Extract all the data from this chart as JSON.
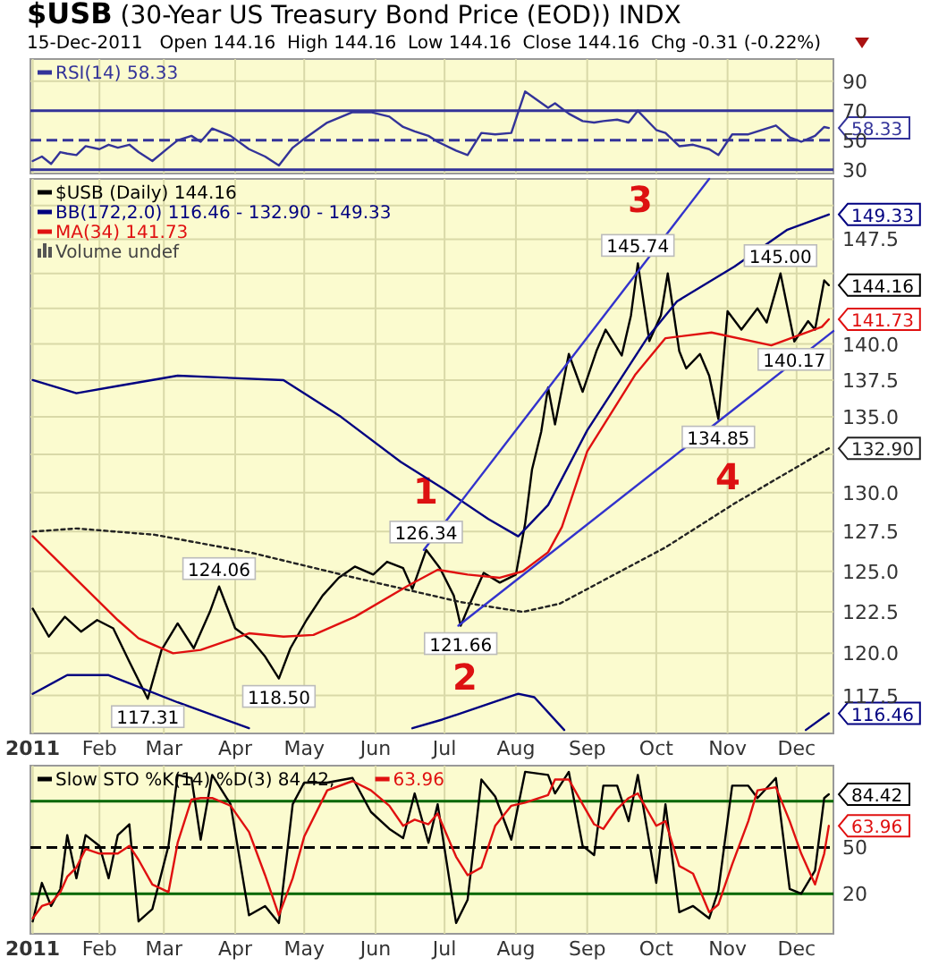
{
  "chart_data": [
    {
      "type": "line",
      "title": "$USB (30-Year US Treasury Bond Price (EOD)) INDX",
      "subtitle": "15-Dec-2011   Open 144.16  High 144.16  Low 144.16  Close 144.16  Chg -0.31 (-0.22%)",
      "x": [
        "2011-01-03",
        "2011-01-07",
        "2011-01-11",
        "2011-01-15",
        "2011-01-18",
        "2011-01-22",
        "2011-01-26",
        "2011-02-01",
        "2011-02-05",
        "2011-02-09",
        "2011-02-14",
        "2011-02-18",
        "2011-02-24",
        "2011-03-03",
        "2011-03-07",
        "2011-03-13",
        "2011-03-17",
        "2011-03-22",
        "2011-03-30",
        "2011-04-07",
        "2011-04-14",
        "2011-04-20",
        "2011-04-26",
        "2011-05-01",
        "2011-05-11",
        "2011-05-22",
        "2011-05-30",
        "2011-06-07",
        "2011-06-13",
        "2011-06-18",
        "2011-06-24",
        "2011-06-28",
        "2011-07-06",
        "2011-07-11",
        "2011-07-17",
        "2011-07-23",
        "2011-07-30",
        "2011-08-05",
        "2011-08-15",
        "2011-08-18",
        "2011-08-24",
        "2011-08-30",
        "2011-09-04",
        "2011-09-08",
        "2011-09-14",
        "2011-09-19",
        "2011-09-23",
        "2011-10-01",
        "2011-10-05",
        "2011-10-11",
        "2011-10-17",
        "2011-10-24",
        "2011-10-28",
        "2011-11-03",
        "2011-11-10",
        "2011-11-14",
        "2011-11-22",
        "2011-11-28",
        "2011-12-03",
        "2011-12-09",
        "2011-12-13",
        "2011-12-15"
      ],
      "series": [
        {
          "name": "RSI(14) 58.33",
          "color": "#333399",
          "values": [
            36,
            39,
            34,
            42,
            41,
            40,
            46,
            44,
            47,
            45,
            47,
            42,
            36,
            45,
            50,
            53,
            49,
            58,
            53,
            44,
            39,
            33,
            45,
            51,
            62,
            69,
            69,
            66,
            59,
            56,
            53,
            49,
            43,
            40,
            55,
            54,
            55,
            83,
            72,
            75,
            68,
            63,
            62,
            63,
            64,
            62,
            70,
            57,
            55,
            46,
            47,
            44,
            40,
            54,
            54,
            56,
            60,
            52,
            49,
            53,
            59,
            58.33
          ],
          "value_labels": [
            null,
            null,
            null,
            null,
            null,
            null,
            null,
            null,
            null,
            null,
            null,
            null,
            null,
            null,
            null,
            null,
            null,
            null,
            null,
            null,
            null,
            null,
            null,
            null,
            null,
            null,
            null,
            null,
            null,
            null,
            null,
            null,
            null,
            null,
            null,
            null,
            null,
            null,
            null,
            null,
            null,
            null,
            null,
            null,
            null,
            null,
            null,
            null,
            null,
            null,
            null,
            null,
            null,
            null,
            null,
            null,
            null,
            null,
            null,
            null,
            null,
            "58.33"
          ]
        }
      ],
      "xlim": [
        "2011-01-02",
        "2011-12-17"
      ],
      "xticks": [
        {
          "value": "2011-01-03",
          "label": null
        },
        {
          "value": "2011-02-01",
          "label": null
        },
        {
          "value": "2011-03-01",
          "label": null
        },
        {
          "value": "2011-04-01",
          "label": null
        },
        {
          "value": "2011-05-01",
          "label": null
        },
        {
          "value": "2011-06-01",
          "label": null
        },
        {
          "value": "2011-07-01",
          "label": null
        },
        {
          "value": "2011-08-01",
          "label": null
        },
        {
          "value": "2011-09-01",
          "label": null
        },
        {
          "value": "2011-10-01",
          "label": null
        },
        {
          "value": "2011-11-01",
          "label": null
        },
        {
          "value": "2011-12-01",
          "label": null
        }
      ],
      "ylim": [
        27.5,
        105
      ],
      "yticks": [
        30,
        50,
        70,
        90
      ],
      "grid": true,
      "legend": "top left",
      "tick_labels": "y",
      "ref_lines": [
        {
          "axis": "y",
          "value": 70,
          "color": "#333399",
          "line_style": "solid"
        },
        {
          "axis": "y",
          "value": 50,
          "color": "#333399",
          "line_style": "dashed"
        },
        {
          "axis": "y",
          "value": 30,
          "color": "#333399",
          "line_style": "solid"
        }
      ]
    },
    {
      "type": "line",
      "log": true,
      "series": [
        {
          "name": "$USB (Daily) 144.16",
          "color": "#000000",
          "x": [
            "2011-01-03",
            "2011-01-10",
            "2011-01-17",
            "2011-01-24",
            "2011-01-31",
            "2011-02-07",
            "2011-02-14",
            "2011-02-22",
            "2011-02-28",
            "2011-03-07",
            "2011-03-14",
            "2011-03-21",
            "2011-03-25",
            "2011-04-01",
            "2011-04-08",
            "2011-04-14",
            "2011-04-20",
            "2011-04-25",
            "2011-05-02",
            "2011-05-09",
            "2011-05-16",
            "2011-05-23",
            "2011-05-31",
            "2011-06-06",
            "2011-06-13",
            "2011-06-17",
            "2011-06-23",
            "2011-06-29",
            "2011-07-05",
            "2011-07-08",
            "2011-07-12",
            "2011-07-18",
            "2011-07-25",
            "2011-08-01",
            "2011-08-05",
            "2011-08-08",
            "2011-08-12",
            "2011-08-15",
            "2011-08-18",
            "2011-08-24",
            "2011-08-30",
            "2011-09-05",
            "2011-09-09",
            "2011-09-16",
            "2011-09-20",
            "2011-09-23",
            "2011-09-28",
            "2011-10-03",
            "2011-10-06",
            "2011-10-11",
            "2011-10-14",
            "2011-10-20",
            "2011-10-24",
            "2011-10-28",
            "2011-11-01",
            "2011-11-07",
            "2011-11-14",
            "2011-11-18",
            "2011-11-22",
            "2011-11-24",
            "2011-11-30",
            "2011-12-06",
            "2011-12-09",
            "2011-12-13",
            "2011-12-15"
          ],
          "values": [
            122.7,
            121.0,
            122.2,
            121.3,
            122.0,
            121.5,
            119.5,
            117.31,
            120.2,
            121.8,
            120.3,
            122.5,
            124.06,
            121.5,
            120.8,
            119.8,
            118.5,
            120.3,
            122.0,
            123.5,
            124.6,
            125.3,
            124.8,
            125.6,
            125.2,
            123.9,
            126.34,
            125.2,
            123.5,
            121.66,
            123.0,
            124.9,
            124.3,
            124.8,
            128.0,
            131.5,
            134.0,
            137.0,
            134.5,
            139.3,
            136.7,
            139.5,
            141.0,
            139.2,
            142.0,
            145.74,
            140.2,
            142.0,
            145.0,
            139.5,
            138.3,
            139.3,
            137.8,
            134.85,
            142.3,
            141.0,
            142.5,
            141.5,
            143.8,
            145.0,
            140.17,
            141.6,
            141.0,
            144.5,
            144.16
          ],
          "value_labels": [
            null,
            null,
            null,
            null,
            null,
            null,
            null,
            "117.31",
            null,
            null,
            null,
            null,
            "124.06",
            null,
            null,
            null,
            "118.50",
            null,
            null,
            null,
            null,
            null,
            null,
            null,
            null,
            null,
            "126.34",
            null,
            null,
            "121.66",
            null,
            null,
            null,
            null,
            null,
            null,
            null,
            null,
            null,
            null,
            null,
            null,
            null,
            null,
            null,
            "145.74",
            null,
            null,
            null,
            null,
            null,
            null,
            null,
            "134.85",
            null,
            null,
            null,
            null,
            null,
            "145.00",
            "140.17",
            null,
            null,
            null,
            "144.16"
          ]
        },
        {
          "name": "BB(172,2.0) 116.46 - 132.90 - 149.33",
          "color": "#000080",
          "x": [
            "2011-01-03",
            "2011-01-22",
            "2011-02-09",
            "2011-03-07",
            "2011-04-22",
            "2011-05-17",
            "2011-06-12",
            "2011-07-01",
            "2011-07-20",
            "2011-08-02",
            "2011-08-15",
            "2011-09-01",
            "2011-09-27",
            "2011-10-10",
            "2011-11-04",
            "2011-11-27",
            "2011-12-15"
          ],
          "values": [
            137.5,
            136.6,
            137.1,
            137.8,
            137.5,
            135.0,
            132.0,
            130.2,
            128.3,
            127.2,
            129.2,
            134.1,
            140.4,
            143.0,
            145.5,
            148.2,
            149.33
          ],
          "value_labels": [
            null,
            null,
            null,
            null,
            null,
            null,
            null,
            null,
            null,
            null,
            null,
            null,
            null,
            null,
            null,
            null,
            "149.33"
          ]
        },
        {
          "color": "#222222",
          "line_style": "dotted",
          "x": [
            "2011-01-03",
            "2011-01-22",
            "2011-02-25",
            "2011-04-07",
            "2011-05-23",
            "2011-07-08",
            "2011-08-04",
            "2011-08-20",
            "2011-10-05",
            "2011-11-04",
            "2011-12-15"
          ],
          "values": [
            127.5,
            127.7,
            127.3,
            126.2,
            124.6,
            123.1,
            122.5,
            123.0,
            126.5,
            129.3,
            132.9
          ],
          "value_labels": [
            null,
            null,
            null,
            null,
            null,
            null,
            null,
            null,
            null,
            null,
            "132.90"
          ]
        },
        {
          "color": "#000080",
          "x": [
            "2011-01-03",
            "2011-01-18",
            "2011-02-05",
            "2011-03-07",
            "2011-04-07",
            "2011-05-15",
            "2011-06-17",
            "2011-06-30",
            "2011-08-02",
            "2011-08-09",
            "2011-08-22",
            "2011-10-15",
            "2011-12-05",
            "2011-12-15"
          ],
          "values": [
            117.6,
            118.7,
            118.7,
            117.1,
            115.6,
            null,
            115.6,
            116.1,
            117.6,
            117.4,
            115.5,
            null,
            115.5,
            116.46
          ],
          "value_labels": [
            null,
            null,
            null,
            null,
            null,
            null,
            null,
            null,
            null,
            null,
            null,
            null,
            null,
            "116.46"
          ]
        },
        {
          "name": "MA(34) 141.73",
          "color": "#e01010",
          "x": [
            "2011-01-03",
            "2011-02-09",
            "2011-02-18",
            "2011-03-05",
            "2011-03-17",
            "2011-04-07",
            "2011-04-22",
            "2011-05-05",
            "2011-05-23",
            "2011-06-15",
            "2011-06-28",
            "2011-07-11",
            "2011-07-25",
            "2011-08-04",
            "2011-08-15",
            "2011-08-21",
            "2011-09-01",
            "2011-09-22",
            "2011-10-05",
            "2011-10-25",
            "2011-11-20",
            "2011-12-12",
            "2011-12-15"
          ],
          "values": [
            127.2,
            122.0,
            120.9,
            120.0,
            120.2,
            121.2,
            121.0,
            121.1,
            122.2,
            124.1,
            125.1,
            124.8,
            124.6,
            125.0,
            126.2,
            127.8,
            132.7,
            137.9,
            140.4,
            140.8,
            139.9,
            141.2,
            141.73
          ],
          "value_labels": [
            null,
            null,
            null,
            null,
            null,
            null,
            null,
            null,
            null,
            null,
            null,
            null,
            null,
            null,
            null,
            null,
            null,
            null,
            null,
            null,
            null,
            null,
            "141.73"
          ]
        },
        {
          "color": "#3333cc",
          "x": [
            "2011-06-22",
            "2011-10-24"
          ],
          "values": [
            126.34,
            152
          ]
        },
        {
          "color": "#3333cc",
          "x": [
            "2011-07-07",
            "2011-12-17"
          ],
          "values": [
            121.66,
            140.9
          ]
        }
      ],
      "xlim": [
        "2011-01-02",
        "2011-12-17"
      ],
      "xticks": [
        {
          "value": "2011-01-03",
          "label": "2011"
        },
        {
          "value": "2011-02-01",
          "label": "Feb"
        },
        {
          "value": "2011-03-01",
          "label": "Mar"
        },
        {
          "value": "2011-04-01",
          "label": "Apr"
        },
        {
          "value": "2011-05-01",
          "label": "May"
        },
        {
          "value": "2011-06-01",
          "label": "Jun"
        },
        {
          "value": "2011-07-01",
          "label": "Jul"
        },
        {
          "value": "2011-08-01",
          "label": "Aug"
        },
        {
          "value": "2011-09-01",
          "label": "Sep"
        },
        {
          "value": "2011-10-01",
          "label": "Oct"
        },
        {
          "value": "2011-11-01",
          "label": "Nov"
        },
        {
          "value": "2011-12-01",
          "label": "Dec"
        }
      ],
      "ylim": [
        115.3,
        152
      ],
      "yticks": [
        117.5,
        {
          "value": 120,
          "label": "120.0"
        },
        122.5,
        {
          "value": 125,
          "label": "125.0"
        },
        127.5,
        {
          "value": 130,
          "label": "130.0"
        },
        {
          "value": 132.5,
          "label": null
        },
        {
          "value": 135,
          "label": "135.0"
        },
        137.5,
        {
          "value": 140,
          "label": "140.0"
        },
        {
          "value": 142.5,
          "label": null
        },
        {
          "value": 145,
          "label": null
        },
        147.5,
        {
          "value": 150,
          "label": null
        }
      ],
      "grid": true,
      "legend": "top left",
      "annotations": [
        "Volume undef",
        "1",
        "2",
        "3",
        "4"
      ]
    },
    {
      "type": "line",
      "x": [
        "2011-01-03",
        "2011-01-07",
        "2011-01-11",
        "2011-01-15",
        "2011-01-18",
        "2011-01-22",
        "2011-01-26",
        "2011-02-01",
        "2011-02-05",
        "2011-02-09",
        "2011-02-14",
        "2011-02-18",
        "2011-02-24",
        "2011-03-03",
        "2011-03-07",
        "2011-03-13",
        "2011-03-17",
        "2011-03-22",
        "2011-03-30",
        "2011-04-07",
        "2011-04-14",
        "2011-04-20",
        "2011-04-26",
        "2011-05-01",
        "2011-05-11",
        "2011-05-22",
        "2011-05-30",
        "2011-06-07",
        "2011-06-13",
        "2011-06-18",
        "2011-06-24",
        "2011-06-28",
        "2011-07-06",
        "2011-07-11",
        "2011-07-17",
        "2011-07-23",
        "2011-07-30",
        "2011-08-05",
        "2011-08-15",
        "2011-08-18",
        "2011-08-24",
        "2011-08-30",
        "2011-09-04",
        "2011-09-08",
        "2011-09-14",
        "2011-09-19",
        "2011-09-23",
        "2011-10-01",
        "2011-10-05",
        "2011-10-11",
        "2011-10-17",
        "2011-10-24",
        "2011-10-28",
        "2011-11-03",
        "2011-11-10",
        "2011-11-14",
        "2011-11-22",
        "2011-11-28",
        "2011-12-03",
        "2011-12-09",
        "2011-12-13",
        "2011-12-15"
      ],
      "series": [
        {
          "name": "Slow STO %K(14) %D(3) 84.42,",
          "color": "#000000",
          "values": [
            2,
            27,
            12,
            23,
            58,
            30,
            58,
            51,
            30,
            58,
            65,
            2,
            10,
            51,
            97,
            95,
            55,
            97,
            78,
            6,
            12,
            1,
            78,
            92,
            92,
            95,
            73,
            62,
            56,
            85,
            53,
            78,
            1,
            16,
            94,
            83,
            55,
            99,
            97,
            85,
            99,
            51,
            45,
            90,
            90,
            67,
            97,
            27,
            78,
            8,
            12,
            4,
            22,
            90,
            90,
            82,
            95,
            23,
            20,
            35,
            82,
            84.42
          ],
          "value_labels": [
            null,
            null,
            null,
            null,
            null,
            null,
            null,
            null,
            null,
            null,
            null,
            null,
            null,
            null,
            null,
            null,
            null,
            null,
            null,
            null,
            null,
            null,
            null,
            null,
            null,
            null,
            null,
            null,
            null,
            null,
            null,
            null,
            null,
            null,
            null,
            null,
            null,
            null,
            null,
            null,
            null,
            null,
            null,
            null,
            null,
            null,
            null,
            null,
            null,
            null,
            null,
            null,
            null,
            null,
            null,
            null,
            null,
            null,
            null,
            null,
            null,
            "84.42"
          ]
        },
        {
          "name": "63.96",
          "color": "#e01010",
          "values": [
            4,
            12,
            14,
            21,
            31,
            37,
            49,
            46,
            46,
            46,
            51,
            42,
            26,
            21,
            53,
            81,
            82,
            82,
            77,
            60,
            32,
            6,
            30,
            57,
            87,
            93,
            87,
            77,
            64,
            68,
            65,
            72,
            44,
            32,
            37,
            64,
            77,
            79,
            84,
            94,
            94,
            78,
            65,
            62,
            75,
            82,
            85,
            64,
            67,
            38,
            33,
            8,
            13,
            39,
            67,
            87,
            89,
            67,
            46,
            26,
            46,
            63.96
          ],
          "value_labels": [
            null,
            null,
            null,
            null,
            null,
            null,
            null,
            null,
            null,
            null,
            null,
            null,
            null,
            null,
            null,
            null,
            null,
            null,
            null,
            null,
            null,
            null,
            null,
            null,
            null,
            null,
            null,
            null,
            null,
            null,
            null,
            null,
            null,
            null,
            null,
            null,
            null,
            null,
            null,
            null,
            null,
            null,
            null,
            null,
            null,
            null,
            null,
            null,
            null,
            null,
            null,
            null,
            null,
            null,
            null,
            null,
            null,
            null,
            null,
            null,
            null,
            "63.96"
          ]
        }
      ],
      "xlim": [
        "2011-01-02",
        "2011-12-17"
      ],
      "xticks": [
        {
          "value": "2011-01-03",
          "label": "2011"
        },
        {
          "value": "2011-02-01",
          "label": "Feb"
        },
        {
          "value": "2011-03-01",
          "label": "Mar"
        },
        {
          "value": "2011-04-01",
          "label": "Apr"
        },
        {
          "value": "2011-05-01",
          "label": "May"
        },
        {
          "value": "2011-06-01",
          "label": "Jun"
        },
        {
          "value": "2011-07-01",
          "label": "Jul"
        },
        {
          "value": "2011-08-01",
          "label": "Aug"
        },
        {
          "value": "2011-09-01",
          "label": "Sep"
        },
        {
          "value": "2011-10-01",
          "label": "Oct"
        },
        {
          "value": "2011-11-01",
          "label": "Nov"
        },
        {
          "value": "2011-12-01",
          "label": "Dec"
        }
      ],
      "ylim": [
        -6,
        103
      ],
      "yticks": [
        20,
        50,
        {
          "value": 80,
          "label": null
        }
      ],
      "grid": true,
      "legend": "top left",
      "ref_lines": [
        {
          "axis": "y",
          "value": 80,
          "color": "#006600",
          "line_style": "solid"
        },
        {
          "axis": "y",
          "value": 50,
          "color": "#000000",
          "line_style": "dashed"
        },
        {
          "axis": "y",
          "value": 20,
          "color": "#006600",
          "line_style": "solid"
        }
      ]
    }
  ]
}
